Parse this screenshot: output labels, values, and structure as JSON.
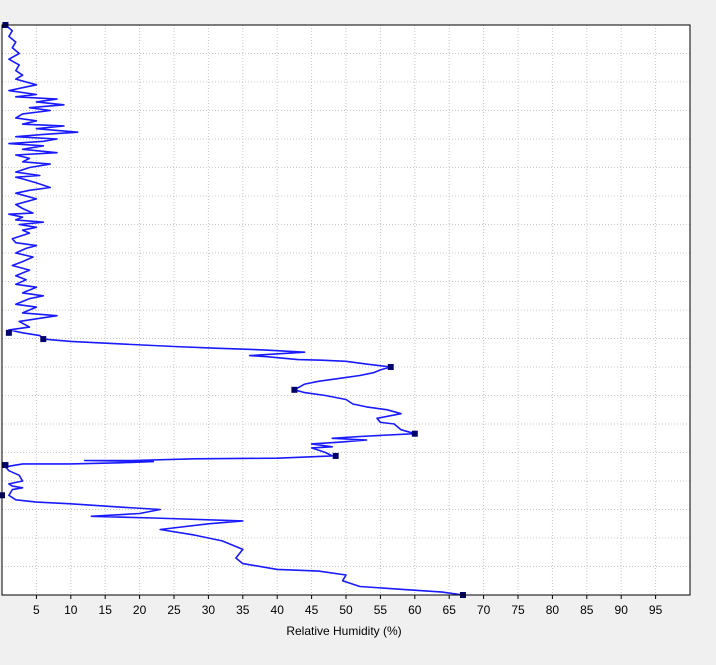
{
  "colors": {
    "background": "#f0f0f0",
    "plot_background": "#ffffff",
    "grid": "#c8c8c8",
    "series": "#1a1aff",
    "marker": "#00006a"
  },
  "chart_data": {
    "type": "line",
    "xlabel": "Relative Humidity (%)",
    "ylabel": "",
    "title": "",
    "xlim": [
      0,
      100
    ],
    "ylim": [
      0,
      100
    ],
    "x_ticks": [
      5,
      10,
      15,
      20,
      25,
      30,
      35,
      40,
      45,
      50,
      55,
      60,
      65,
      70,
      75,
      80,
      85,
      90,
      95
    ],
    "y_grid_count": 20,
    "grid": true,
    "series": [
      {
        "points": [
          [
            67,
            0
          ],
          [
            64,
            0.5
          ],
          [
            58,
            1
          ],
          [
            52,
            1.5
          ],
          [
            49.5,
            2.5
          ],
          [
            50,
            3.5
          ],
          [
            46,
            4.2
          ],
          [
            40,
            4.5
          ],
          [
            35,
            5.5
          ],
          [
            34,
            6.5
          ],
          [
            35,
            8
          ],
          [
            32,
            9.5
          ],
          [
            28,
            10.5
          ],
          [
            23,
            11.5
          ],
          [
            30,
            12.5
          ],
          [
            35,
            13
          ],
          [
            22,
            13.5
          ],
          [
            13,
            13.8
          ],
          [
            20,
            14.3
          ],
          [
            23,
            15
          ],
          [
            16,
            15.5
          ],
          [
            10,
            16
          ],
          [
            5,
            16.3
          ],
          [
            2,
            16.7
          ],
          [
            1,
            17.5
          ],
          [
            1.5,
            18.5
          ],
          [
            3,
            18.8
          ],
          [
            1.5,
            19.1
          ],
          [
            1,
            19.5
          ],
          [
            3,
            20
          ],
          [
            2.5,
            21
          ],
          [
            1,
            21.8
          ],
          [
            0.5,
            22.5
          ],
          [
            3,
            23
          ],
          [
            10,
            23
          ],
          [
            17,
            23.2
          ],
          [
            22,
            23.4
          ],
          [
            12,
            23.6
          ],
          [
            19,
            23.6
          ],
          [
            28,
            23.9
          ],
          [
            40,
            24
          ],
          [
            44,
            24.2
          ],
          [
            48,
            24.4
          ],
          [
            47,
            25
          ],
          [
            45,
            25.8
          ],
          [
            48,
            26
          ],
          [
            45,
            26.5
          ],
          [
            49,
            26.8
          ],
          [
            53,
            27.2
          ],
          [
            48,
            27.5
          ],
          [
            52,
            27.8
          ],
          [
            55,
            28
          ],
          [
            60,
            28.3
          ],
          [
            58,
            29
          ],
          [
            57,
            30
          ],
          [
            55,
            30.3
          ],
          [
            54.5,
            31
          ],
          [
            58,
            31.8
          ],
          [
            56,
            32.5
          ],
          [
            53,
            33
          ],
          [
            51,
            33.5
          ],
          [
            50,
            34.3
          ],
          [
            47,
            35
          ],
          [
            44,
            35.5
          ],
          [
            42.5,
            36
          ],
          [
            44,
            37
          ],
          [
            46,
            37.5
          ],
          [
            49,
            38
          ],
          [
            52,
            38.5
          ],
          [
            54,
            39
          ],
          [
            55,
            39.5
          ],
          [
            56.5,
            40
          ],
          [
            53,
            40.5
          ],
          [
            50,
            41
          ],
          [
            46.5,
            41.2
          ],
          [
            43,
            41.3
          ],
          [
            38.5,
            41.8
          ],
          [
            36,
            42
          ],
          [
            44,
            42.6
          ],
          [
            38,
            43
          ],
          [
            31,
            43.3
          ],
          [
            25,
            43.6
          ],
          [
            18,
            44
          ],
          [
            10,
            44.5
          ],
          [
            6,
            44.9
          ],
          [
            5.5,
            45.5
          ],
          [
            3,
            46
          ],
          [
            1,
            46.5
          ],
          [
            4,
            47
          ],
          [
            2.5,
            48
          ],
          [
            8,
            49
          ],
          [
            3,
            49.5
          ],
          [
            5,
            50.5
          ],
          [
            2,
            51
          ],
          [
            4,
            52
          ],
          [
            6,
            52.5
          ],
          [
            3,
            53
          ],
          [
            5,
            54
          ],
          [
            2,
            54.5
          ],
          [
            3.5,
            55.3
          ],
          [
            2,
            56
          ],
          [
            4,
            57
          ],
          [
            1.5,
            57.8
          ],
          [
            3,
            58.5
          ],
          [
            4.5,
            59.3
          ],
          [
            2,
            60
          ],
          [
            3.5,
            60.8
          ],
          [
            5,
            61.3
          ],
          [
            2,
            61.8
          ],
          [
            1.5,
            62.5
          ],
          [
            4,
            63.5
          ],
          [
            3,
            64
          ],
          [
            5,
            64.5
          ],
          [
            2.5,
            65
          ],
          [
            6,
            65.4
          ],
          [
            2,
            65.8
          ],
          [
            3,
            66.3
          ],
          [
            1,
            66.8
          ],
          [
            4.5,
            67
          ],
          [
            3,
            67.8
          ],
          [
            2,
            68.5
          ],
          [
            3.5,
            69
          ],
          [
            5,
            69.5
          ],
          [
            2,
            70.5
          ],
          [
            4,
            71
          ],
          [
            7,
            71.5
          ],
          [
            5,
            72.3
          ],
          [
            3,
            73
          ],
          [
            2,
            73.3
          ],
          [
            5.5,
            73.6
          ],
          [
            2,
            74.2
          ],
          [
            4,
            75
          ],
          [
            7,
            75.6
          ],
          [
            3,
            76
          ],
          [
            4,
            76.6
          ],
          [
            2,
            77.2
          ],
          [
            8,
            77.6
          ],
          [
            3,
            78.2
          ],
          [
            6,
            78.8
          ],
          [
            1,
            79.2
          ],
          [
            6,
            79.6
          ],
          [
            8,
            80
          ],
          [
            2,
            80.4
          ],
          [
            6,
            80.8
          ],
          [
            11,
            81.2
          ],
          [
            5,
            81.8
          ],
          [
            9,
            82.3
          ],
          [
            3,
            82.6
          ],
          [
            5,
            83.2
          ],
          [
            2,
            83.7
          ],
          [
            3,
            84.4
          ],
          [
            7,
            85
          ],
          [
            4,
            85.5
          ],
          [
            9,
            86
          ],
          [
            5,
            86.5
          ],
          [
            8,
            87
          ],
          [
            2,
            87.4
          ],
          [
            5,
            87.8
          ],
          [
            1,
            88.5
          ],
          [
            3,
            89
          ],
          [
            5,
            89.5
          ],
          [
            2,
            90.5
          ],
          [
            3,
            91.2
          ],
          [
            2,
            92
          ],
          [
            2.5,
            93
          ],
          [
            1,
            94
          ],
          [
            2.5,
            95
          ],
          [
            1.5,
            96
          ],
          [
            2,
            97
          ],
          [
            1,
            98
          ],
          [
            1.5,
            99
          ],
          [
            0.5,
            100
          ]
        ]
      }
    ],
    "markers": [
      [
        67,
        0
      ],
      [
        0,
        17.5
      ],
      [
        0.5,
        22.8
      ],
      [
        48.5,
        24.4
      ],
      [
        60,
        28.3
      ],
      [
        42.5,
        36
      ],
      [
        56.5,
        40
      ],
      [
        6,
        44.9
      ],
      [
        1,
        46
      ],
      [
        0.5,
        100
      ]
    ]
  }
}
